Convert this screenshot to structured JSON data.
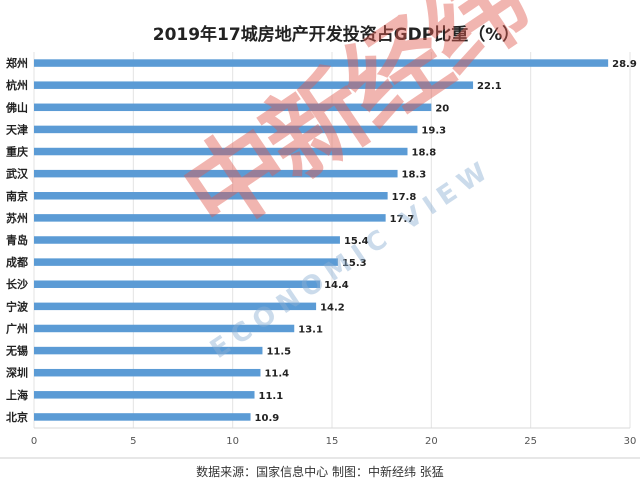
{
  "chart_data": {
    "type": "bar",
    "orientation": "horizontal",
    "title": "2019年17城房地产开发投资占GDP比重（%）",
    "categories": [
      "郑州",
      "杭州",
      "佛山",
      "天津",
      "重庆",
      "武汉",
      "南京",
      "苏州",
      "青岛",
      "成都",
      "长沙",
      "宁波",
      "广州",
      "无锡",
      "深圳",
      "上海",
      "北京"
    ],
    "values": [
      28.9,
      22.1,
      20,
      19.3,
      18.8,
      18.3,
      17.8,
      17.7,
      15.4,
      15.3,
      14.4,
      14.2,
      13.1,
      11.5,
      11.4,
      11.1,
      10.9
    ],
    "value_labels": [
      "28.9",
      "22.1",
      "20",
      "19.3",
      "18.8",
      "18.3",
      "17.8",
      "17.7",
      "15.4",
      "15.3",
      "14.4",
      "14.2",
      "13.1",
      "11.5",
      "11.4",
      "11.1",
      "10.9"
    ],
    "xlim": [
      0,
      30
    ],
    "xticks": [
      "0",
      "5",
      "10",
      "15",
      "20",
      "25",
      "30"
    ],
    "grid": true,
    "bar_color": "#5b9bd5",
    "source_note": "数据来源：国家信息中心  制图：中新经纬 张猛"
  },
  "watermark": {
    "chinese": "中新经纬",
    "english": "ECONOMIC VIEW"
  }
}
